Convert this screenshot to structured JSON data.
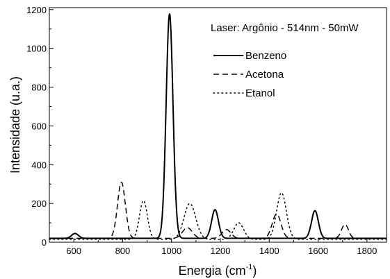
{
  "chart_data": {
    "type": "line",
    "xlabel": "Energia (cm",
    "xlabel_sup": "-1",
    "xlabel_close": ")",
    "ylabel": "Intensidade (u.a.)",
    "annotation": "Laser: Argônio - 514nm - 50mW",
    "xlim": [
      500,
      1880
    ],
    "ylim": [
      0,
      1210
    ],
    "xticks": [
      600,
      800,
      1000,
      1200,
      1400,
      1600,
      1800
    ],
    "yticks": [
      0,
      200,
      400,
      600,
      800,
      1000,
      1200
    ],
    "legend_position": "top-right",
    "series": [
      {
        "name": "Benzeno",
        "style": "solid",
        "baseline": 20,
        "peaks": [
          {
            "x": 605,
            "height": 25,
            "width": 14
          },
          {
            "x": 992,
            "height": 1160,
            "width": 14
          },
          {
            "x": 1178,
            "height": 148,
            "width": 14
          },
          {
            "x": 1587,
            "height": 143,
            "width": 14
          }
        ],
        "values": []
      },
      {
        "name": "Acetona",
        "style": "dashed",
        "baseline": 20,
        "peaks": [
          {
            "x": 795,
            "height": 290,
            "width": 16
          },
          {
            "x": 1065,
            "height": 55,
            "width": 20
          },
          {
            "x": 1225,
            "height": 45,
            "width": 18
          },
          {
            "x": 1430,
            "height": 125,
            "width": 18
          },
          {
            "x": 1710,
            "height": 72,
            "width": 14
          }
        ],
        "values": []
      },
      {
        "name": "Etanol",
        "style": "dotted",
        "baseline": 15,
        "peaks": [
          {
            "x": 885,
            "height": 200,
            "width": 16
          },
          {
            "x": 1075,
            "height": 185,
            "width": 24
          },
          {
            "x": 1275,
            "height": 85,
            "width": 20
          },
          {
            "x": 1450,
            "height": 240,
            "width": 20
          }
        ],
        "values": []
      }
    ]
  }
}
